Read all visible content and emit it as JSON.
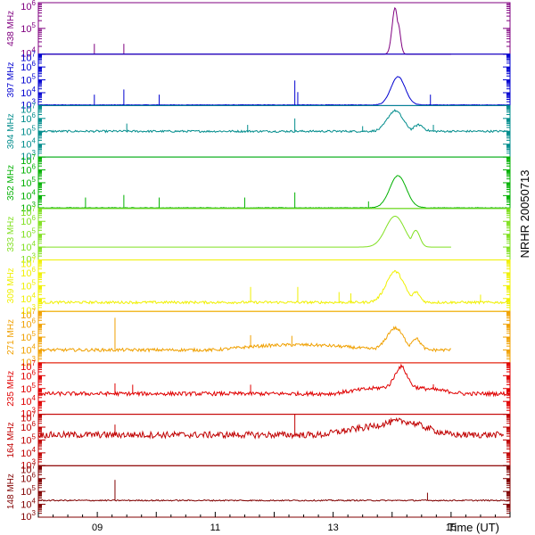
{
  "side_label": "NRHR 20050713",
  "chart_data": {
    "type": "line",
    "xlabel": "Time (UT)",
    "xlim": [
      8.0,
      16.0
    ],
    "x_ticks": [
      {
        "value": 9,
        "label": "09"
      },
      {
        "value": 11,
        "label": "11"
      },
      {
        "value": 13,
        "label": "13"
      },
      {
        "value": 15,
        "label": "15"
      }
    ],
    "y_scale": "log",
    "panels": [
      {
        "name": "438 MHz",
        "color": "#800080",
        "ylim_exp": [
          4,
          6
        ],
        "ticks": [
          4,
          5,
          6
        ],
        "baseline_exp": 4.0,
        "noise": 0.0,
        "bursts": [
          [
            14.05,
            1.8,
            0.05
          ],
          [
            14.1,
            1.2,
            0.04
          ]
        ],
        "plateau": null,
        "data_start": 8.0,
        "data_end": 15.0,
        "spikes": [
          [
            8.95,
            0.4
          ],
          [
            9.45,
            0.4
          ]
        ]
      },
      {
        "name": "397 MHz",
        "color": "#0000d0",
        "ylim_exp": [
          3,
          7
        ],
        "ticks": [
          3,
          4,
          5,
          6,
          7
        ],
        "baseline_exp": 3.05,
        "noise": 0.02,
        "bursts": [
          [
            14.1,
            2.2,
            0.12
          ]
        ],
        "plateau": null,
        "data_start": 8.0,
        "data_end": 16.0,
        "spikes": [
          [
            8.95,
            0.8
          ],
          [
            9.45,
            1.2
          ],
          [
            10.05,
            0.8
          ],
          [
            12.35,
            1.9
          ],
          [
            12.4,
            1.0
          ],
          [
            14.65,
            0.8
          ]
        ]
      },
      {
        "name": "394 MHz",
        "color": "#008c8c",
        "ylim_exp": [
          3,
          7
        ],
        "ticks": [
          3,
          4,
          5,
          6,
          7
        ],
        "baseline_exp": 5.0,
        "noise": 0.08,
        "bursts": [
          [
            14.05,
            1.6,
            0.13
          ],
          [
            14.45,
            0.5,
            0.08
          ]
        ],
        "plateau": null,
        "data_start": 8.0,
        "data_end": 16.0,
        "spikes": [
          [
            9.5,
            0.6
          ],
          [
            11.55,
            0.5
          ],
          [
            12.35,
            1.0
          ],
          [
            13.5,
            0.4
          ],
          [
            14.7,
            0.5
          ]
        ]
      },
      {
        "name": "352 MHz",
        "color": "#00b000",
        "ylim_exp": [
          3,
          7
        ],
        "ticks": [
          3,
          4,
          5,
          6,
          7
        ],
        "baseline_exp": 3.05,
        "noise": 0.02,
        "bursts": [
          [
            14.1,
            2.5,
            0.14
          ]
        ],
        "plateau": null,
        "data_start": 8.0,
        "data_end": 16.0,
        "spikes": [
          [
            8.8,
            0.8
          ],
          [
            9.45,
            1.0
          ],
          [
            10.05,
            0.8
          ],
          [
            11.5,
            0.8
          ],
          [
            12.35,
            1.2
          ],
          [
            13.6,
            0.5
          ]
        ]
      },
      {
        "name": "333 MHz",
        "color": "#80e020",
        "ylim_exp": [
          3,
          7
        ],
        "ticks": [
          3,
          4,
          5,
          6,
          7
        ],
        "baseline_exp": 4.0,
        "noise": 0.0,
        "bursts": [
          [
            14.05,
            2.4,
            0.16
          ],
          [
            14.4,
            1.3,
            0.07
          ]
        ],
        "plateau": null,
        "data_start": 8.0,
        "data_end": 15.0,
        "spikes": []
      },
      {
        "name": "309 MHz",
        "color": "#f0f000",
        "ylim_exp": [
          3,
          7
        ],
        "ticks": [
          3,
          4,
          5,
          6,
          7
        ],
        "baseline_exp": 3.7,
        "noise": 0.1,
        "bursts": [
          [
            14.05,
            2.4,
            0.15
          ],
          [
            14.4,
            0.8,
            0.07
          ]
        ],
        "plateau": null,
        "data_start": 8.0,
        "data_end": 16.0,
        "spikes": [
          [
            11.6,
            1.2
          ],
          [
            12.4,
            1.2
          ],
          [
            13.1,
            0.8
          ],
          [
            13.3,
            0.7
          ],
          [
            15.5,
            0.6
          ]
        ]
      },
      {
        "name": "271 MHz",
        "color": "#f0a000",
        "ylim_exp": [
          3,
          7
        ],
        "ticks": [
          3,
          4,
          5,
          6,
          7
        ],
        "baseline_exp": 4.0,
        "noise": 0.12,
        "bursts": [
          [
            14.05,
            1.7,
            0.14
          ],
          [
            14.4,
            0.9,
            0.08
          ]
        ],
        "plateau": [
          11.0,
          13.8,
          0.4
        ],
        "data_start": 8.0,
        "data_end": 15.0,
        "spikes": [
          [
            9.3,
            2.5
          ],
          [
            11.6,
            0.9
          ],
          [
            12.3,
            0.7
          ]
        ]
      },
      {
        "name": "235 MHz",
        "color": "#e00000",
        "ylim_exp": [
          3,
          7
        ],
        "ticks": [
          3,
          4,
          5,
          6,
          7
        ],
        "baseline_exp": 4.6,
        "noise": 0.15,
        "bursts": [
          [
            14.15,
            1.6,
            0.1
          ]
        ],
        "plateau": [
          13.0,
          15.2,
          0.5
        ],
        "data_start": 8.0,
        "data_end": 16.0,
        "spikes": [
          [
            9.3,
            0.8
          ],
          [
            9.6,
            0.7
          ],
          [
            11.6,
            0.7
          ],
          [
            14.7,
            0.4
          ]
        ]
      },
      {
        "name": "164 MHz",
        "color": "#c00000",
        "ylim_exp": [
          3,
          7
        ],
        "ticks": [
          3,
          4,
          5,
          6,
          7
        ],
        "baseline_exp": 5.4,
        "noise": 0.25,
        "bursts": [
          [
            14.2,
            0.5,
            0.3
          ]
        ],
        "plateau": [
          12.8,
          15.0,
          0.6
        ],
        "data_start": 8.0,
        "data_end": 15.9,
        "spikes": [
          [
            9.3,
            0.8
          ],
          [
            12.35,
            1.6
          ]
        ]
      },
      {
        "name": "148 MHz",
        "color": "#800000",
        "ylim_exp": [
          3,
          7
        ],
        "ticks": [
          3,
          4,
          5,
          6,
          7
        ],
        "baseline_exp": 4.3,
        "noise": 0.05,
        "bursts": [],
        "plateau": null,
        "data_start": 8.0,
        "data_end": 16.0,
        "spikes": [
          [
            9.3,
            1.6
          ],
          [
            14.6,
            0.6
          ]
        ]
      }
    ]
  }
}
